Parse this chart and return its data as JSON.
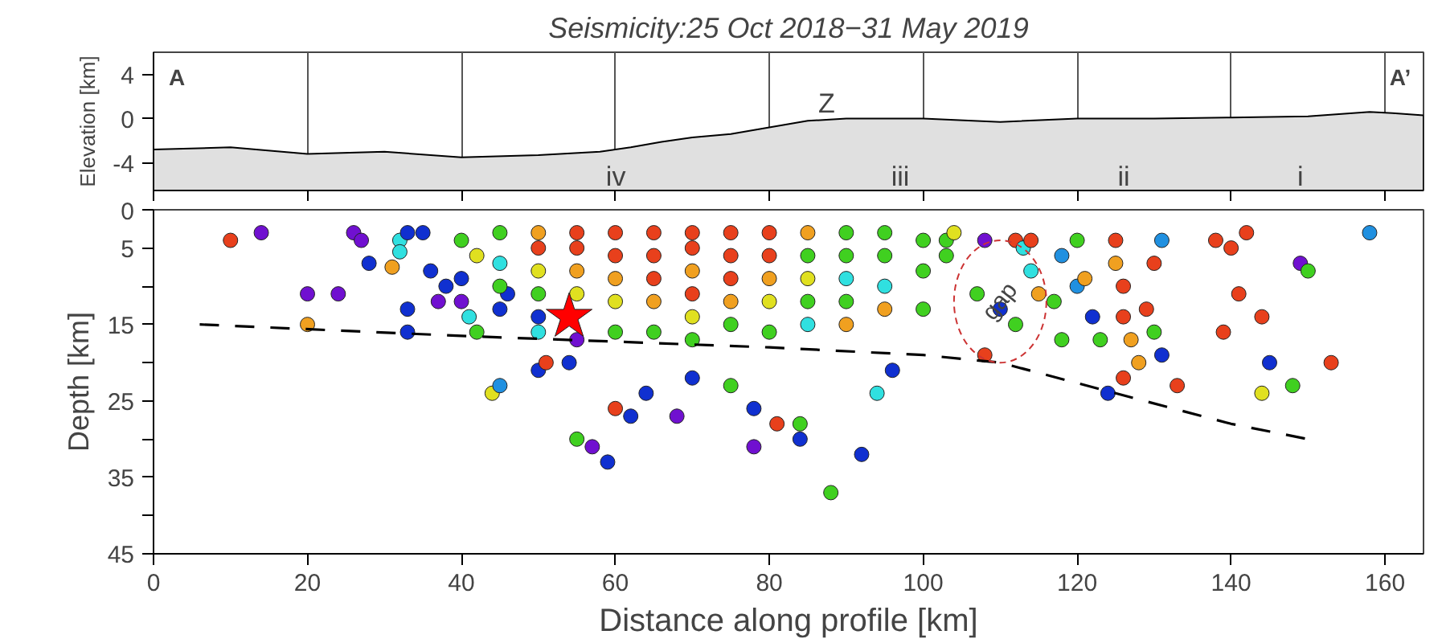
{
  "chart_data": [
    {
      "type": "area",
      "title": "Seismicity:25 Oct 2018−31 May 2019",
      "ylabel": "Elevation [km]",
      "color": "#e0e0e0",
      "x": [
        0,
        10,
        20,
        30,
        40,
        50,
        58,
        62,
        66,
        70,
        75,
        80,
        85,
        90,
        100,
        110,
        120,
        130,
        140,
        150,
        158,
        161,
        165
      ],
      "values": [
        -2.8,
        -2.6,
        -3.2,
        -3.0,
        -3.5,
        -3.3,
        -3.0,
        -2.6,
        -2.1,
        -1.7,
        -1.4,
        -0.8,
        -0.2,
        0,
        0,
        -0.3,
        0,
        0,
        0.1,
        0.2,
        0.6,
        0.5,
        0.3
      ],
      "xlim": [
        0,
        165
      ],
      "ylim": [
        -6.5,
        6
      ],
      "yticks": [
        -4,
        0,
        4
      ],
      "xticks": [
        0,
        20,
        40,
        60,
        80,
        100,
        120,
        140,
        160
      ],
      "grid": "x",
      "tick_labels": "y",
      "annotations": [
        "A",
        "A’",
        "Z",
        "iv",
        "iii",
        "ii",
        "i"
      ]
    },
    {
      "type": "scatter",
      "xlabel": "Distance along profile [km]",
      "ylabel": "Depth [km]",
      "xlim": [
        0,
        165
      ],
      "ylim": [
        45,
        0
      ],
      "xticks": [
        0,
        20,
        40,
        60,
        80,
        100,
        120,
        140,
        160
      ],
      "yticks": [
        0,
        5,
        {
          "value": 10,
          "label": null
        },
        15,
        {
          "value": 20,
          "label": null
        },
        25,
        {
          "value": 30,
          "label": null
        },
        35,
        {
          "value": 40,
          "label": null
        },
        45
      ],
      "grid": false,
      "annotations": [
        {
          "text": "gap",
          "x": 110,
          "y": 12
        }
      ],
      "series": [
        {
          "type": "scatter",
          "marker": "circle",
          "x": [
            10,
            14,
            26,
            27,
            20,
            24,
            20,
            28,
            31,
            32,
            32,
            33,
            33,
            33,
            35,
            36,
            38,
            37,
            40,
            41,
            42,
            46,
            50,
            50,
            40,
            40,
            42,
            45,
            45,
            45,
            45,
            50,
            50,
            50,
            50,
            50,
            55,
            55,
            55,
            55,
            55,
            60,
            60,
            60,
            60,
            60,
            65,
            65,
            65,
            65,
            65,
            70,
            70,
            70,
            70,
            70,
            70,
            75,
            75,
            75,
            75,
            75,
            80,
            80,
            80,
            80,
            80,
            85,
            85,
            85,
            85,
            85,
            90,
            90,
            90,
            90,
            90,
            95,
            95,
            95,
            95,
            100,
            100,
            100,
            44,
            45,
            51,
            54,
            55,
            57,
            59,
            60,
            62,
            64,
            68,
            70,
            75,
            78,
            78,
            81,
            84,
            84,
            88,
            92,
            94,
            96,
            103,
            103,
            104,
            108,
            107,
            108,
            110,
            112,
            113,
            112,
            114,
            114,
            115,
            117,
            118,
            118,
            120,
            120,
            121,
            122,
            123,
            124,
            125,
            125,
            126,
            126,
            127,
            128,
            126,
            129,
            130,
            130,
            131,
            131,
            133,
            138,
            140,
            142,
            141,
            139,
            144,
            145,
            144,
            148,
            149,
            150,
            153,
            158
          ],
          "values": [
            4,
            3,
            3,
            4,
            11,
            11,
            15,
            7,
            7.5,
            4,
            5.5,
            3,
            13,
            16,
            3,
            8,
            10,
            12,
            12,
            14,
            16,
            11,
            16,
            21,
            4,
            9,
            6,
            3,
            7,
            10,
            13,
            3,
            5,
            8,
            11,
            14,
            3,
            5,
            8,
            11,
            17,
            3,
            6,
            9,
            12,
            16,
            3,
            6,
            9,
            12,
            16,
            3,
            5,
            8,
            11,
            14,
            17,
            3,
            6,
            9,
            12,
            15,
            3,
            6,
            9,
            12,
            16,
            3,
            6,
            9,
            12,
            15,
            3,
            6,
            9,
            12,
            15,
            3,
            6,
            10,
            13,
            4,
            8,
            13,
            24,
            23,
            20,
            20,
            30,
            31,
            33,
            26,
            27,
            24,
            27,
            22,
            23,
            26,
            31,
            28,
            30,
            28,
            37,
            32,
            24,
            21,
            4,
            6,
            3,
            4,
            11,
            19,
            13,
            4,
            5,
            15,
            4,
            8,
            11,
            12,
            6,
            17,
            4,
            10,
            9,
            14,
            17,
            24,
            4,
            7,
            10,
            14,
            17,
            20,
            22,
            13,
            7,
            16,
            4,
            19,
            23,
            4,
            5,
            3,
            11,
            16,
            14,
            20,
            24,
            23,
            7,
            8,
            20,
            3
          ],
          "colors": [
            "#e8401c",
            "#7010d0",
            "#7010d0",
            "#7010d0",
            "#7010d0",
            "#7010d0",
            "#f0a020",
            "#1030d0",
            "#f0a020",
            "#30e0e0",
            "#30e0e0",
            "#1030d0",
            "#1030d0",
            "#1030d0",
            "#1030d0",
            "#1030d0",
            "#1030d0",
            "#7010d0",
            "#7010d0",
            "#30e0e0",
            "#40d020",
            "#1030d0",
            "#30e0e0",
            "#1030d0",
            "#40d020",
            "#1030d0",
            "#e0e020",
            "#40d020",
            "#30e0e0",
            "#40d020",
            "#1030d0",
            "#f0a020",
            "#e8401c",
            "#e0e020",
            "#40d020",
            "#1030d0",
            "#e8401c",
            "#e8401c",
            "#f0a020",
            "#e0e020",
            "#7010d0",
            "#e8401c",
            "#e8401c",
            "#f0a020",
            "#e0e020",
            "#40d020",
            "#e8401c",
            "#e8401c",
            "#e8401c",
            "#f0a020",
            "#40d020",
            "#e8401c",
            "#e8401c",
            "#f0a020",
            "#e8401c",
            "#e0e020",
            "#40d020",
            "#e8401c",
            "#e8401c",
            "#e8401c",
            "#f0a020",
            "#40d020",
            "#e8401c",
            "#e8401c",
            "#f0a020",
            "#e0e020",
            "#40d020",
            "#f0a020",
            "#40d020",
            "#e0e020",
            "#40d020",
            "#30e0e0",
            "#40d020",
            "#40d020",
            "#30e0e0",
            "#40d020",
            "#f0a020",
            "#40d020",
            "#40d020",
            "#30e0e0",
            "#f0a020",
            "#40d020",
            "#40d020",
            "#40d020",
            "#e0e020",
            "#2090e0",
            "#e8401c",
            "#1030d0",
            "#40d020",
            "#7010d0",
            "#1030d0",
            "#e8401c",
            "#1030d0",
            "#1030d0",
            "#7010d0",
            "#1030d0",
            "#40d020",
            "#1030d0",
            "#7010d0",
            "#e8401c",
            "#1030d0",
            "#40d020",
            "#40d020",
            "#1030d0",
            "#30e0e0",
            "#1030d0",
            "#40d020",
            "#40d020",
            "#e0e020",
            "#7010d0",
            "#40d020",
            "#e8401c",
            "#1030d0",
            "#e8401c",
            "#30e0e0",
            "#40d020",
            "#e8401c",
            "#30e0e0",
            "#f0a020",
            "#40d020",
            "#2090e0",
            "#40d020",
            "#40d020",
            "#2090e0",
            "#f0a020",
            "#1030d0",
            "#40d020",
            "#1030d0",
            "#e8401c",
            "#f0a020",
            "#e8401c",
            "#e8401c",
            "#f0a020",
            "#f0a020",
            "#e8401c",
            "#e8401c",
            "#e8401c",
            "#40d020",
            "#2090e0",
            "#1030d0",
            "#e8401c",
            "#e8401c",
            "#e8401c",
            "#e8401c",
            "#e8401c",
            "#e8401c",
            "#e8401c",
            "#1030d0",
            "#e0e020",
            "#40d020",
            "#7010d0",
            "#40d020",
            "#e8401c",
            "#2090e0"
          ]
        },
        {
          "type": "scatter",
          "marker": "star",
          "color": "#ff0000",
          "x": [
            54
          ],
          "values": [
            14
          ]
        },
        {
          "type": "line",
          "line_style": "dashed",
          "color": "#000000",
          "x": [
            6,
            40,
            80,
            100,
            110,
            125,
            140,
            150
          ],
          "values": [
            15,
            16.5,
            18,
            19,
            20,
            24,
            28,
            30
          ]
        }
      ]
    }
  ]
}
